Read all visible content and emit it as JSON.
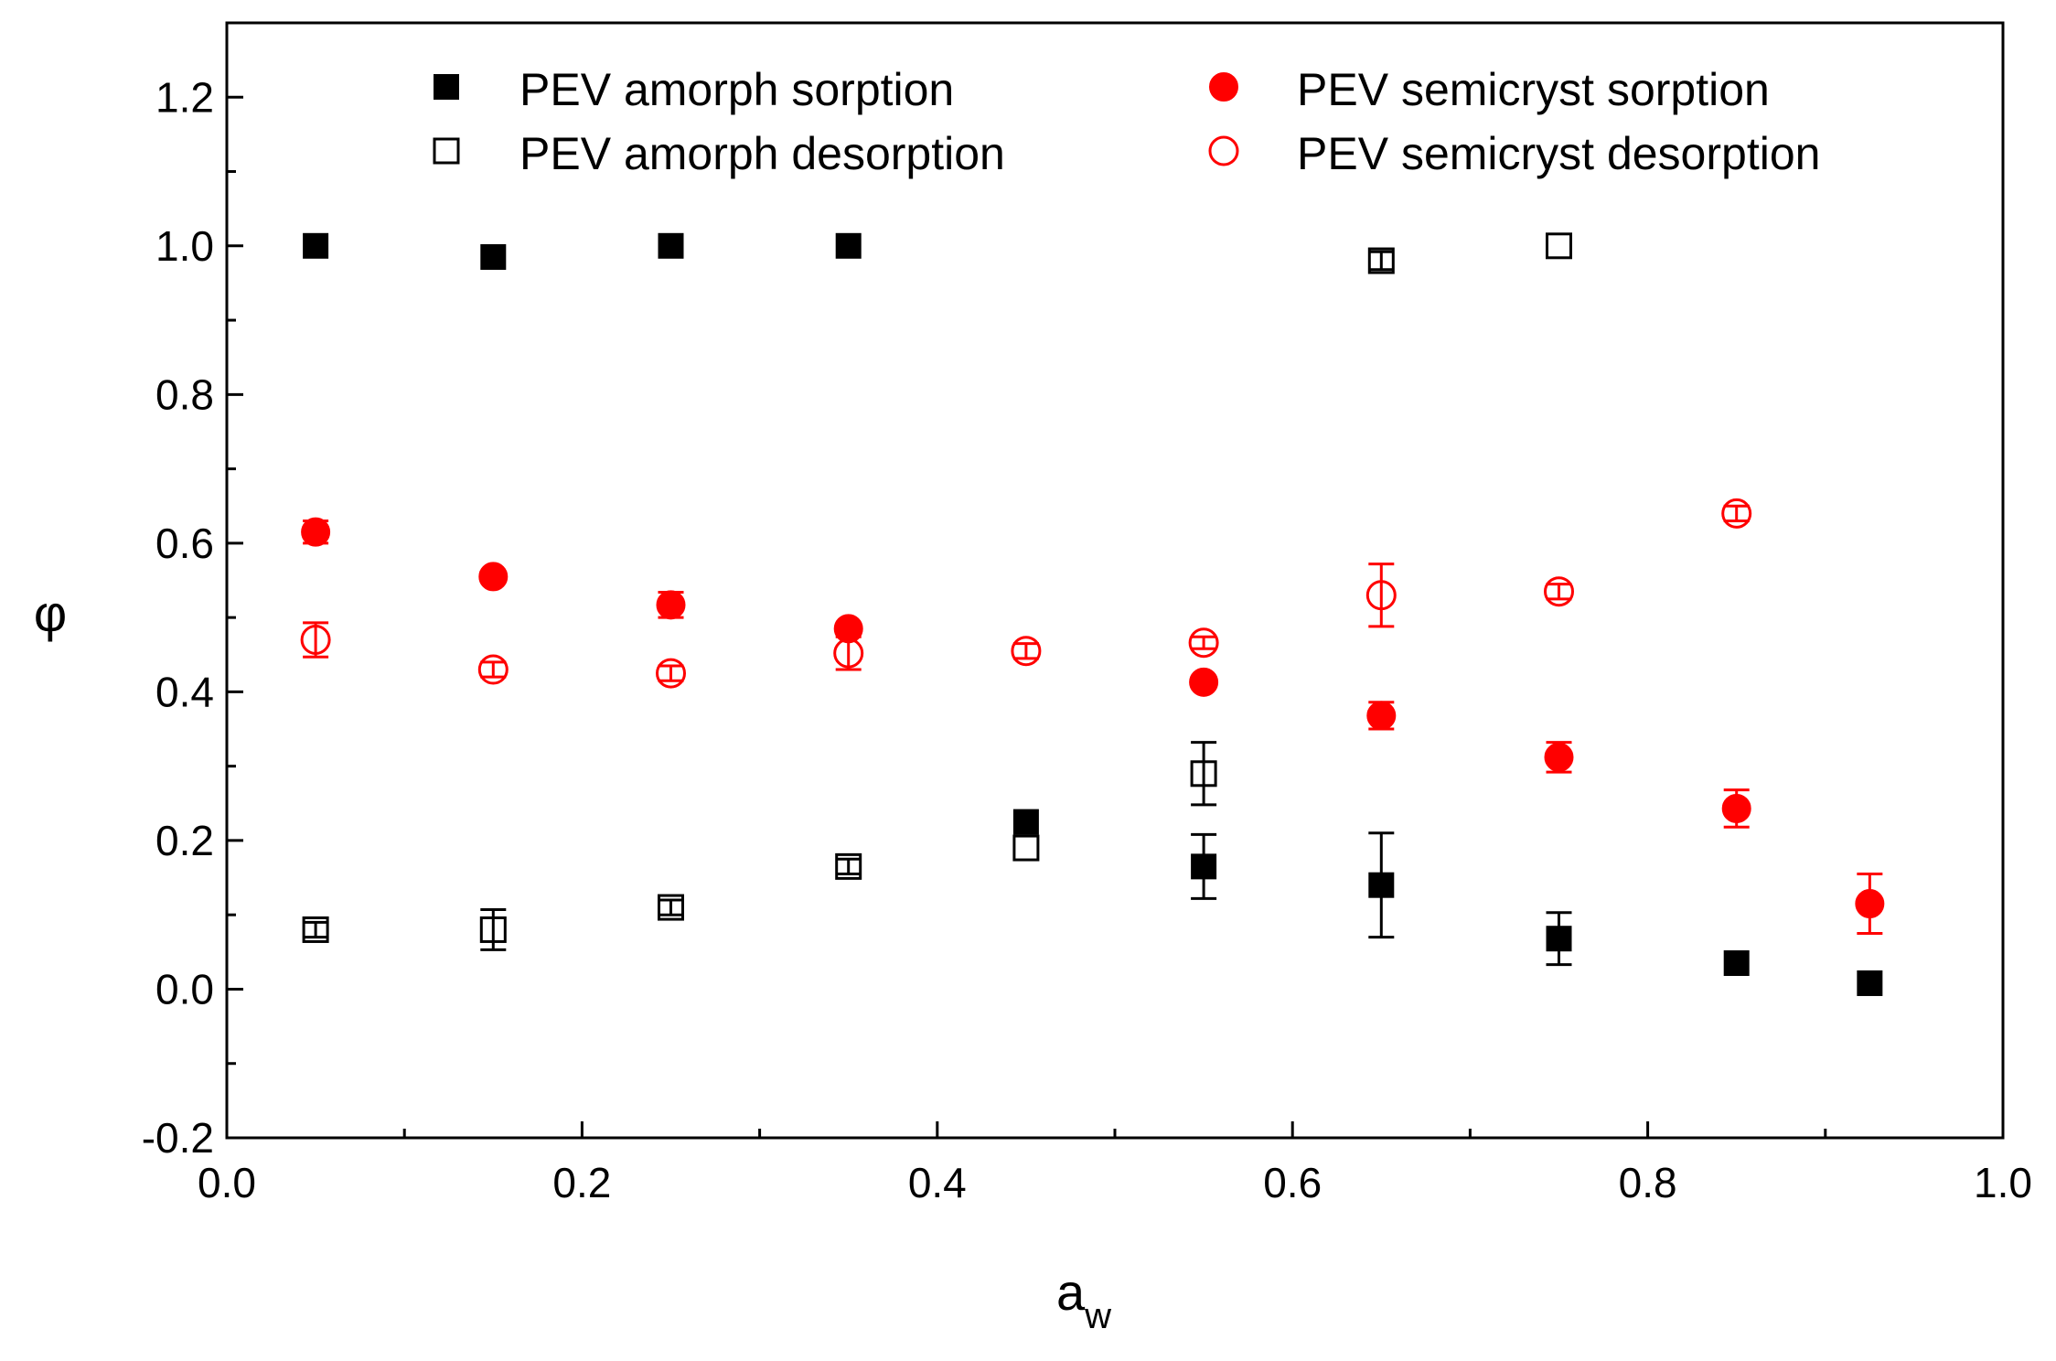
{
  "chart_data": {
    "type": "scatter",
    "xlabel": "a",
    "xlabel_sub": "w",
    "ylabel": "φ",
    "xlim": [
      0.0,
      1.0
    ],
    "ylim": [
      -0.2,
      1.3
    ],
    "x_ticks": [
      0.0,
      0.2,
      0.4,
      0.6,
      0.8,
      1.0
    ],
    "x_tick_labels": [
      "0.0",
      "0.2",
      "0.4",
      "0.6",
      "0.8",
      "1.0"
    ],
    "y_ticks": [
      -0.2,
      0.0,
      0.2,
      0.4,
      0.6,
      0.8,
      1.0,
      1.2
    ],
    "y_tick_labels": [
      "-0.2",
      "0.0",
      "0.2",
      "0.4",
      "0.6",
      "0.8",
      "1.0",
      "1.2"
    ],
    "grid": false,
    "legend_position": "top",
    "series": [
      {
        "name": "PEV amorph sorption",
        "marker": "square",
        "filled": true,
        "color": "#000000",
        "x": [
          0.05,
          0.15,
          0.25,
          0.35,
          0.45,
          0.55,
          0.65,
          0.75,
          0.85,
          0.925
        ],
        "y": [
          1.0,
          0.985,
          1.0,
          1.0,
          0.225,
          0.165,
          0.14,
          0.068,
          0.035,
          0.008
        ],
        "err": [
          0.0,
          0.0,
          0.0,
          0.0,
          0.0,
          0.043,
          0.07,
          0.035,
          0.0,
          0.0
        ]
      },
      {
        "name": "PEV amorph desorption",
        "marker": "square",
        "filled": false,
        "color": "#000000",
        "x": [
          0.05,
          0.15,
          0.25,
          0.35,
          0.45,
          0.55,
          0.65,
          0.75
        ],
        "y": [
          0.08,
          0.08,
          0.11,
          0.165,
          0.19,
          0.29,
          0.98,
          1.0
        ],
        "err": [
          0.01,
          0.027,
          0.01,
          0.01,
          0.0,
          0.042,
          0.012,
          0.0
        ]
      },
      {
        "name": "PEV semicryst sorption",
        "marker": "circle",
        "filled": true,
        "color": "#ff0000",
        "x": [
          0.05,
          0.15,
          0.25,
          0.35,
          0.55,
          0.65,
          0.75,
          0.85,
          0.925
        ],
        "y": [
          0.615,
          0.555,
          0.517,
          0.485,
          0.413,
          0.368,
          0.312,
          0.243,
          0.115
        ],
        "err": [
          0.015,
          0.0,
          0.017,
          0.0,
          0.0,
          0.018,
          0.02,
          0.025,
          0.04
        ]
      },
      {
        "name": "PEV semicryst desorption",
        "marker": "circle",
        "filled": false,
        "color": "#ff0000",
        "x": [
          0.05,
          0.15,
          0.25,
          0.35,
          0.45,
          0.55,
          0.65,
          0.75,
          0.85
        ],
        "y": [
          0.47,
          0.43,
          0.425,
          0.452,
          0.455,
          0.466,
          0.53,
          0.535,
          0.64
        ],
        "err": [
          0.023,
          0.01,
          0.01,
          0.022,
          0.01,
          0.008,
          0.042,
          0.01,
          0.01
        ]
      }
    ]
  }
}
